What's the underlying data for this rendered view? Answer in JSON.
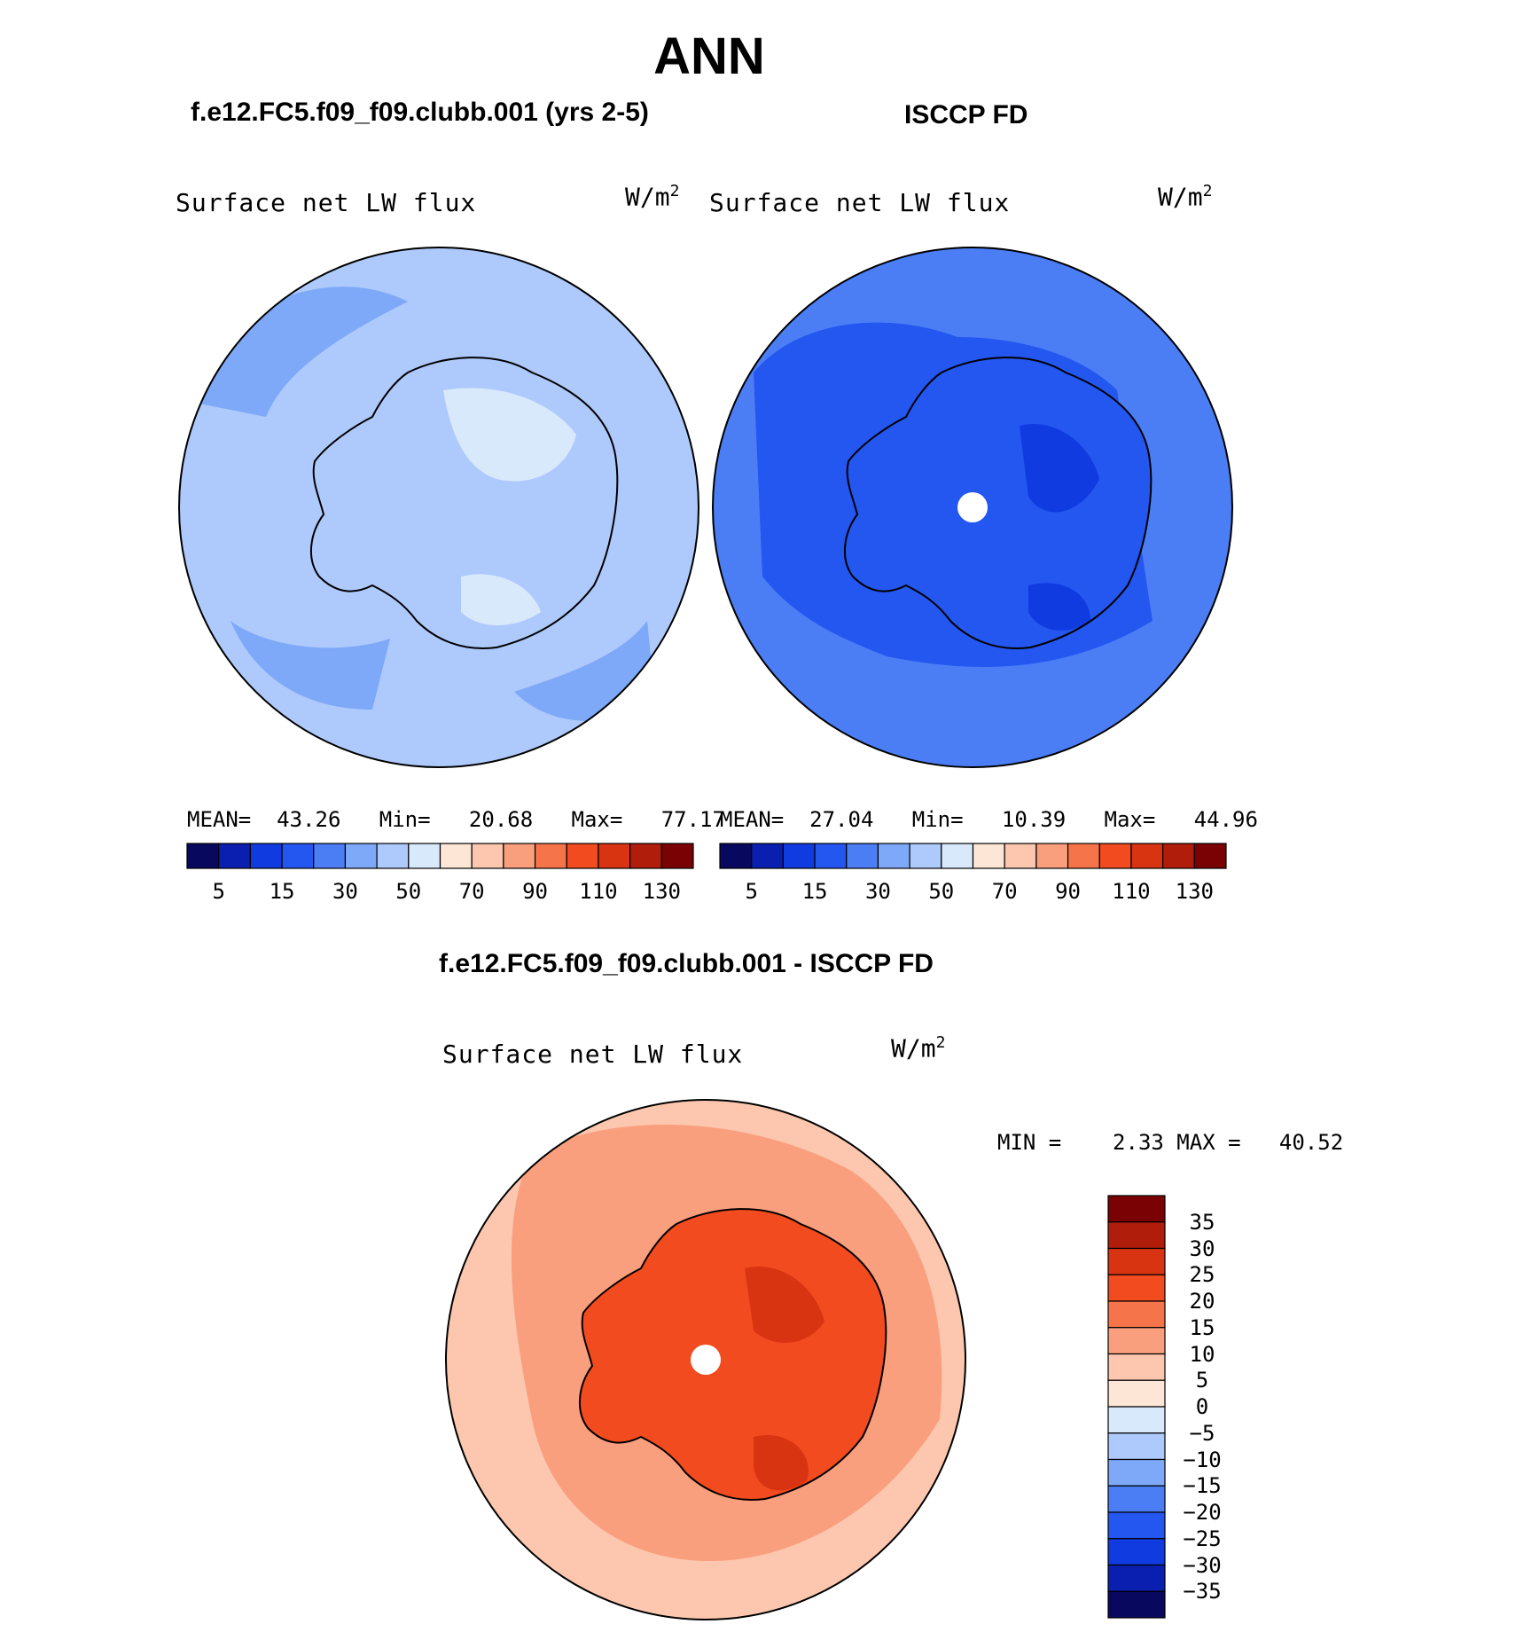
{
  "figure": {
    "title": "ANN"
  },
  "panels": {
    "model": {
      "title": "f.e12.FC5.f09_f09.clubb.001 (yrs 2-5)",
      "variable": "Surface net LW flux",
      "units_base": "W/m",
      "units_exp": "2",
      "stats": {
        "mean_label": "MEAN=",
        "mean": "43.26",
        "min_label": "Min=",
        "min": "20.68",
        "max_label": "Max=",
        "max": "77.17"
      }
    },
    "obs": {
      "title": "ISCCP FD",
      "variable": "Surface net LW flux",
      "units_base": "W/m",
      "units_exp": "2",
      "stats": {
        "mean_label": "MEAN=",
        "mean": "27.04",
        "min_label": "Min=",
        "min": "10.39",
        "max_label": "Max=",
        "max": "44.96"
      }
    },
    "diff": {
      "title": "f.e12.FC5.f09_f09.clubb.001 - ISCCP FD",
      "variable": "Surface net LW flux",
      "units_base": "W/m",
      "units_exp": "2",
      "stats": {
        "min_label": "MIN =",
        "min": "2.33",
        "max_label": "MAX =",
        "max": "40.52"
      }
    }
  },
  "colorbars": {
    "abs": {
      "colors": [
        "#08085e",
        "#0a1fb0",
        "#0f3be0",
        "#2456f0",
        "#4b7ef5",
        "#7ea8f8",
        "#aec9fb",
        "#d8e9fc",
        "#fde6d5",
        "#fcc7ae",
        "#fa9f7e",
        "#f6744a",
        "#f24b1f",
        "#d93412",
        "#b01e0b",
        "#7a0204"
      ],
      "tick_labels": [
        "5",
        "15",
        "30",
        "50",
        "70",
        "90",
        "110",
        "130"
      ]
    },
    "diff": {
      "colors": [
        "#7a0204",
        "#b01e0b",
        "#d93412",
        "#f24b1f",
        "#f6744a",
        "#fa9f7e",
        "#fcc7ae",
        "#fde6d5",
        "#d8e9fc",
        "#aec9fb",
        "#7ea8f8",
        "#4b7ef5",
        "#2456f0",
        "#0f3be0",
        "#0a1fb0",
        "#08085e"
      ],
      "tick_labels": [
        "35",
        "30",
        "25",
        "20",
        "15",
        "10",
        "5",
        "0",
        "−5",
        "−10",
        "−15",
        "−20",
        "−25",
        "−30",
        "−35"
      ]
    }
  },
  "map_fill": {
    "model": {
      "ocean": "#aec9fb",
      "band": "#7ea8f8",
      "land": "#aec9fb",
      "ice": "#d8e9fc"
    },
    "obs": {
      "ocean": "#4b7ef5",
      "band": "#2456f0",
      "land": "#2456f0",
      "ice": "#0f3be0"
    },
    "diff": {
      "ocean": "#fcc7ae",
      "band": "#fa9f7e",
      "land": "#f24b1f",
      "ice": "#d93412"
    }
  }
}
